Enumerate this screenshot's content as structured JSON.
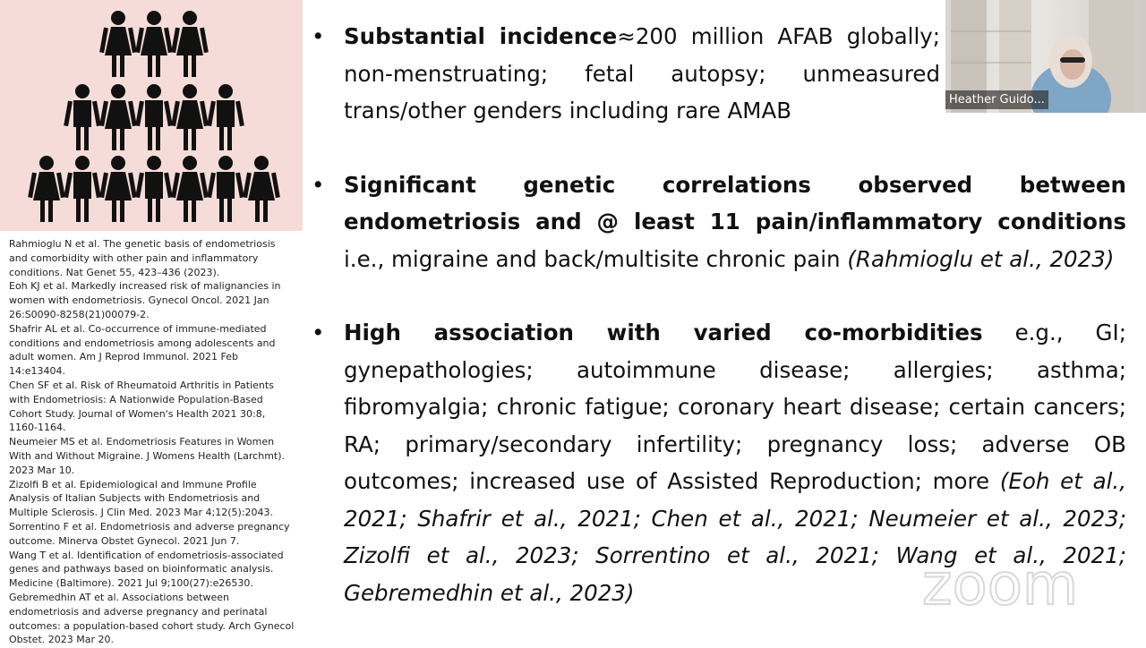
{
  "references": [
    "Rahmioglu N et al. The genetic basis of endometriosis and comorbidity with other pain and inflammatory conditions. Nat Genet 55, 423–436 (2023).",
    "Eoh KJ et al. Markedly increased risk of malignancies in women with endometriosis. Gynecol Oncol. 2021 Jan 26:S0090-8258(21)00079-2.",
    "Shafrir AL et al. Co-occurrence of immune-mediated conditions and endometriosis among adolescents and adult women. Am J Reprod Immunol. 2021 Feb 14:e13404.",
    "Chen SF et al. Risk of Rheumatoid Arthritis in Patients with Endometriosis: A Nationwide Population-Based Cohort Study. Journal of Women's Health 2021 30:8, 1160-1164.",
    "Neumeier MS et al. Endometriosis Features in Women With and Without Migraine. J Womens Health (Larchmt). 2023 Mar 10.",
    "Zizolfi B et al. Epidemiological and Immune Profile Analysis of Italian Subjects with Endometriosis and Multiple Sclerosis. J Clin Med. 2023 Mar 4;12(5):2043.",
    "Sorrentino F et al. Endometriosis and adverse pregnancy outcome. Minerva Obstet Gynecol. 2021 Jun 7.",
    "Wang T et al. Identification of endometriosis-associated genes and pathways based on bioinformatic analysis. Medicine (Baltimore). 2021 Jul 9;100(27):e26530.",
    "Gebremedhin AT et al. Associations between endometriosis and adverse pregnancy and perinatal outcomes: a population-based cohort study. Arch Gynecol Obstet. 2023 Mar 20."
  ],
  "bullets": [
    {
      "runs": [
        {
          "text": "Substantial incidence",
          "style": "bold"
        },
        {
          "text": "≈200 million AFAB globally; non-menstruating; fetal autopsy; unmeasured trans/other genders including rare AMAB",
          "style": "normal"
        }
      ]
    },
    {
      "runs": [
        {
          "text": "Significant genetic correlations observed between endometriosis and @ least 11 pain/inflammatory conditions",
          "style": "bold"
        },
        {
          "text": " i.e., migraine and back/multisite chronic pain ",
          "style": "normal"
        },
        {
          "text": "(Rahmioglu et al., 2023)",
          "style": "italic"
        }
      ]
    },
    {
      "runs": [
        {
          "text": "High association with varied co-morbidities",
          "style": "bold"
        },
        {
          "text": " e.g., GI; gynepathologies; autoimmune disease; allergies; asthma; fibromyalgia; chronic fatigue; coronary heart disease; certain cancers; RA; primary/secondary infertility; pregnancy loss; adverse OB outcomes; increased use of Assisted Reproduction; more ",
          "style": "normal"
        },
        {
          "text": "(Eoh et al., 2021; Shafrir et al., 2021; Chen et al., 2021; Neumeier et al., 2023; Zizolfi et al., 2023; Sorrentino et al., 2021; Wang et al., 2021; Gebremedhin et al., 2023)",
          "style": "italic"
        }
      ]
    }
  ],
  "participant": {
    "name": "Heather Guido..."
  },
  "watermark": "zoom"
}
